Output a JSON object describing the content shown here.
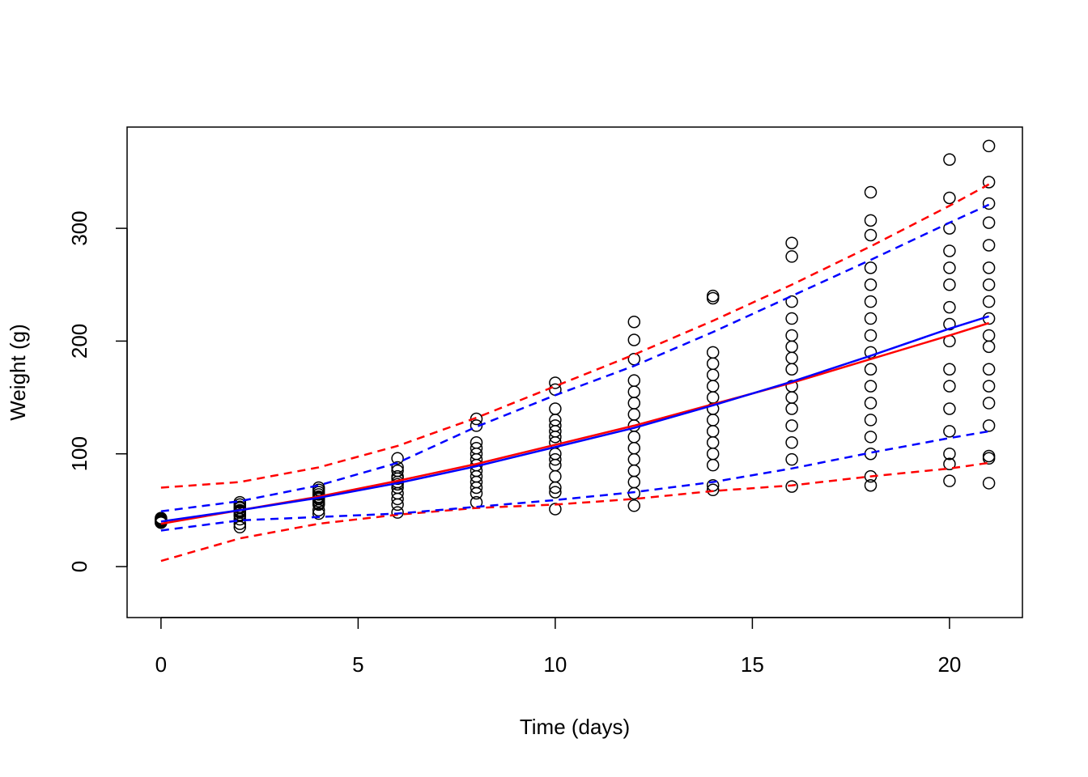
{
  "chart_data": {
    "type": "scatter",
    "xlabel": "Time (days)",
    "ylabel": "Weight (g)",
    "xlim": [
      -0.86,
      21.85
    ],
    "ylim": [
      -45.2,
      389.8
    ],
    "xticks": [
      0,
      5,
      10,
      15,
      20
    ],
    "yticks": [
      0,
      100,
      200,
      300
    ],
    "point_color": "#000000",
    "groups": [
      {
        "x": 0,
        "values": [
          39,
          40,
          41,
          42,
          43,
          41,
          40,
          39
        ]
      },
      {
        "x": 2,
        "values": [
          35,
          38,
          42,
          45,
          48,
          50,
          52,
          55,
          57,
          49,
          46,
          53
        ]
      },
      {
        "x": 4,
        "values": [
          47,
          50,
          55,
          58,
          60,
          62,
          64,
          66,
          68,
          70,
          56,
          61
        ]
      },
      {
        "x": 6,
        "values": [
          48,
          55,
          60,
          65,
          70,
          75,
          80,
          85,
          88,
          96,
          73,
          78
        ]
      },
      {
        "x": 8,
        "values": [
          57,
          65,
          70,
          75,
          80,
          85,
          90,
          95,
          100,
          105,
          110,
          125,
          131
        ]
      },
      {
        "x": 10,
        "values": [
          51,
          66,
          70,
          80,
          90,
          95,
          100,
          110,
          115,
          120,
          125,
          130,
          140,
          157,
          163
        ]
      },
      {
        "x": 12,
        "values": [
          54,
          65,
          75,
          85,
          95,
          105,
          115,
          125,
          135,
          145,
          155,
          165,
          184,
          201,
          217
        ]
      },
      {
        "x": 14,
        "values": [
          68,
          72,
          90,
          100,
          110,
          120,
          130,
          140,
          150,
          160,
          170,
          180,
          190,
          238,
          240
        ]
      },
      {
        "x": 16,
        "values": [
          71,
          95,
          110,
          125,
          140,
          150,
          160,
          175,
          185,
          195,
          205,
          220,
          235,
          275,
          287
        ]
      },
      {
        "x": 18,
        "values": [
          72,
          80,
          100,
          115,
          130,
          145,
          160,
          175,
          190,
          205,
          220,
          235,
          250,
          265,
          294,
          307,
          332
        ]
      },
      {
        "x": 20,
        "values": [
          76,
          91,
          100,
          120,
          140,
          160,
          175,
          200,
          215,
          230,
          250,
          265,
          280,
          300,
          327,
          361
        ]
      },
      {
        "x": 21,
        "values": [
          74,
          96,
          98,
          125,
          145,
          160,
          175,
          195,
          205,
          220,
          235,
          250,
          265,
          285,
          305,
          322,
          341,
          373
        ]
      }
    ],
    "line_x": [
      0,
      2,
      4,
      6,
      8,
      10,
      12,
      14,
      16,
      18,
      20,
      21
    ],
    "lines": [
      {
        "color": "#ff0000",
        "dashed": false,
        "values": [
          38,
          50,
          62,
          76,
          91,
          108,
          125,
          144,
          163,
          184,
          205,
          216
        ]
      },
      {
        "color": "#ff0000",
        "dashed": true,
        "values": [
          70,
          75,
          88,
          107,
          132,
          160,
          188,
          218,
          250,
          284,
          320,
          339
        ]
      },
      {
        "color": "#ff0000",
        "dashed": true,
        "values": [
          5,
          25,
          38,
          46,
          52,
          55,
          60,
          67,
          72,
          80,
          87,
          92
        ]
      },
      {
        "color": "#0000ff",
        "dashed": false,
        "values": [
          40,
          50,
          61,
          74,
          89,
          106,
          123,
          143,
          164,
          187,
          211,
          222
        ]
      },
      {
        "color": "#0000ff",
        "dashed": true,
        "values": [
          49,
          58,
          72,
          92,
          124,
          152,
          178,
          208,
          240,
          272,
          305,
          321
        ]
      },
      {
        "color": "#0000ff",
        "dashed": true,
        "values": [
          32,
          41,
          44,
          47,
          53,
          59,
          66,
          75,
          87,
          101,
          114,
          120
        ]
      }
    ]
  }
}
